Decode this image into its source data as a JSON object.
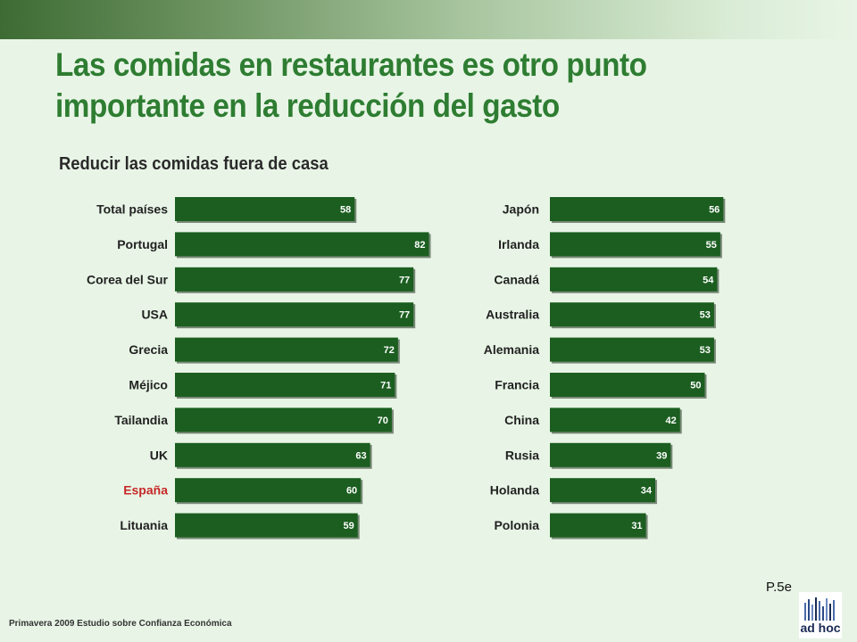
{
  "title": "Las comidas en restaurantes es otro punto importante en la reducción del gasto",
  "subtitle": "Reducir las comidas fuera de casa",
  "footer": "Primavera 2009 Estudio sobre Confianza Económica",
  "page_number": "P.5e",
  "logo_text": "ad hoc",
  "colors": {
    "bar": "#1b5e20",
    "bar_shadow": "#7a8a78",
    "highlight_label": "#c62828",
    "title": "#2e7d32"
  },
  "chart_data": [
    {
      "type": "bar",
      "orientation": "horizontal",
      "categories": [
        "Total países",
        "Portugal",
        "Corea del Sur",
        "USA",
        "Grecia",
        "Méjico",
        "Tailandia",
        "UK",
        "España",
        "Lituania"
      ],
      "values": [
        58,
        82,
        77,
        77,
        72,
        71,
        70,
        63,
        60,
        59
      ],
      "highlight": "España",
      "data_labels": true
    },
    {
      "type": "bar",
      "orientation": "horizontal",
      "categories": [
        "Japón",
        "Irlanda",
        "Canadá",
        "Australia",
        "Alemania",
        "Francia",
        "China",
        "Rusia",
        "Holanda",
        "Polonia"
      ],
      "values": [
        56,
        55,
        54,
        53,
        53,
        50,
        42,
        39,
        34,
        31
      ],
      "data_labels": true
    }
  ]
}
